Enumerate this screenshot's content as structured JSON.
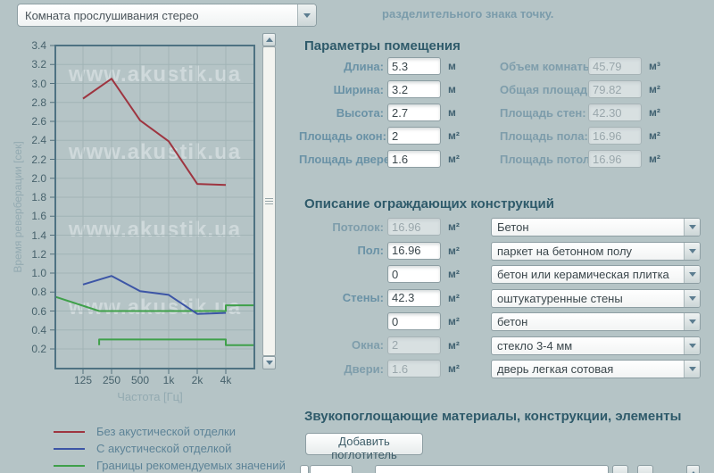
{
  "top": {
    "room_select_value": "Комната прослушивания стерео",
    "note": "разделительного знака точку."
  },
  "chart": {
    "legend": [
      {
        "label": "Без акустической отделки",
        "color": "#9e3540"
      },
      {
        "label": "С акустической отделкой",
        "color": "#3c55a6"
      },
      {
        "label": "Границы рекомендуемых значений",
        "color": "#3fa04a"
      }
    ]
  },
  "chart_data": {
    "type": "line",
    "xlabel": "Частота [Гц]",
    "ylabel": "Время реверберации [сек]",
    "x_hz": [
      125,
      250,
      500,
      1000,
      2000,
      4000
    ],
    "x_tick_labels": [
      "125",
      "250",
      "500",
      "1k",
      "2k",
      "4k"
    ],
    "x_scale": "log2",
    "xlim_hz": [
      64,
      8000
    ],
    "ylim": [
      0,
      3.4
    ],
    "y_tick_step": 0.2,
    "grid": true,
    "legend_position": "bottom-left",
    "watermark": "www.akustik.ua",
    "series": [
      {
        "name": "Без акустической отделки",
        "color": "#9e3540",
        "values": [
          2.84,
          3.05,
          2.61,
          2.39,
          1.94,
          1.93
        ]
      },
      {
        "name": "С акустической отделкой",
        "color": "#3c55a6",
        "values": [
          0.88,
          0.97,
          0.81,
          0.77,
          0.57,
          0.58
        ]
      }
    ],
    "bounds": {
      "name": "Границы рекомендуемых значений",
      "color": "#3fa04a",
      "upper": [
        [
          64,
          0.75
        ],
        [
          185,
          0.6
        ],
        [
          4000,
          0.6
        ],
        [
          4000,
          0.66
        ],
        [
          8000,
          0.66
        ]
      ],
      "lower": [
        [
          185,
          0.24
        ],
        [
          185,
          0.3
        ],
        [
          4000,
          0.3
        ],
        [
          4000,
          0.24
        ],
        [
          8000,
          0.24
        ]
      ]
    }
  },
  "room_params": {
    "title": "Параметры помещения",
    "left": [
      {
        "label": "Длина:",
        "value": "5.3",
        "unit": "м",
        "readonly": false
      },
      {
        "label": "Ширина:",
        "value": "3.2",
        "unit": "м",
        "readonly": false
      },
      {
        "label": "Высота:",
        "value": "2.7",
        "unit": "м",
        "readonly": false
      },
      {
        "label": "Площадь окон:",
        "value": "2",
        "unit": "м²",
        "readonly": false
      },
      {
        "label": "Площадь дверей:",
        "value": "1.6",
        "unit": "м²",
        "readonly": false
      }
    ],
    "right": [
      {
        "label": "Объем комнаты:",
        "value": "45.79",
        "unit": "м³",
        "readonly": true
      },
      {
        "label": "Общая площадь:",
        "value": "79.82",
        "unit": "м²",
        "readonly": true
      },
      {
        "label": "Площадь стен:",
        "value": "42.30",
        "unit": "м²",
        "readonly": true
      },
      {
        "label": "Площадь пола:",
        "value": "16.96",
        "unit": "м²",
        "readonly": true
      },
      {
        "label": "Площадь потолка:",
        "value": "16.96",
        "unit": "м²",
        "readonly": true
      }
    ]
  },
  "constructions": {
    "title": "Описание ограждающих конструкций",
    "rows": [
      {
        "label": "Потолок:",
        "area": "16.96",
        "unit": "м²",
        "readonly": true,
        "material": "Бетон"
      },
      {
        "label": "Пол:",
        "area": "16.96",
        "unit": "м²",
        "readonly": false,
        "material": "паркет на бетонном полу"
      },
      {
        "label": "",
        "area": "0",
        "unit": "м²",
        "readonly": false,
        "material": "бетон или керамическая плитка"
      },
      {
        "label": "Стены:",
        "area": "42.3",
        "unit": "м²",
        "readonly": false,
        "material": "оштукатуренные стены"
      },
      {
        "label": "",
        "area": "0",
        "unit": "м²",
        "readonly": false,
        "material": "бетон"
      },
      {
        "label": "Окна:",
        "area": "2",
        "unit": "м²",
        "readonly": true,
        "material": "стекло 3-4 мм"
      },
      {
        "label": "Двери:",
        "area": "1.6",
        "unit": "м²",
        "readonly": true,
        "material": "дверь легкая сотовая"
      }
    ]
  },
  "absorbers": {
    "title": "Звукопоглощающие материалы, конструкции, элементы",
    "add_button": "Добавить поглотитель"
  }
}
